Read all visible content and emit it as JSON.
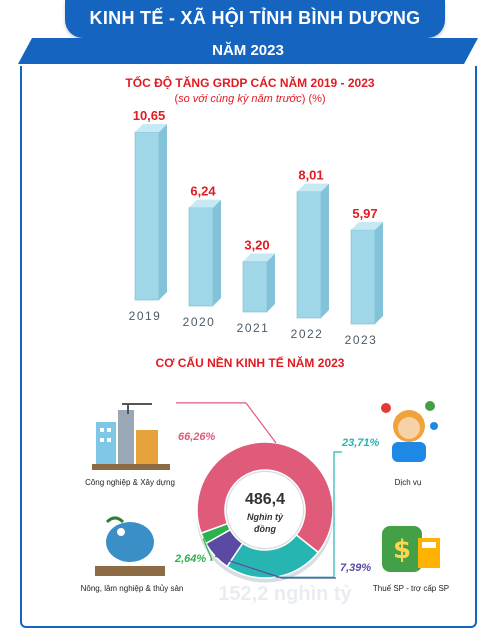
{
  "header": {
    "title": "KINH TẾ - XÃ HỘI TỈNH BÌNH DƯƠNG",
    "year": "NĂM 2023",
    "banner_color": "#1565c0",
    "accent_color": "#e01b22"
  },
  "chart_data": [
    {
      "type": "bar",
      "title": "TỐC ĐỘ TĂNG GRDP CÁC NĂM 2019 - 2023",
      "subtitle_italic": "so với cùng kỳ năm trước",
      "subtitle_unit": "(%)",
      "categories": [
        "2019",
        "2020",
        "2021",
        "2022",
        "2023"
      ],
      "values": [
        10.65,
        6.24,
        3.2,
        8.01,
        5.97
      ],
      "value_labels": [
        "10,65",
        "6,24",
        "3,20",
        "8,01",
        "5,97"
      ],
      "bar_color": "#9fd6e8",
      "label_color": "#e01b22"
    },
    {
      "type": "pie",
      "title": "CƠ CẤU NỀN KINH TẾ NĂM 2023",
      "center_value": "486,4",
      "center_unit": "Nghìn tỷ đồng",
      "slices": [
        {
          "label": "Công nghiệp & Xây dựng",
          "value": 66.26,
          "value_label": "66,26%",
          "color": "#e05a7a"
        },
        {
          "label": "Dịch vụ",
          "value": 23.71,
          "value_label": "23,71%",
          "color": "#26b5b0"
        },
        {
          "label": "Thuế SP - trợ cấp SP",
          "value": 7.39,
          "value_label": "7,39%",
          "color": "#5b4aa3"
        },
        {
          "label": "Nông, lâm nghiệp & thủy sản",
          "value": 2.64,
          "value_label": "2,64%",
          "color": "#2bb24c"
        }
      ],
      "faint_text": "152,2 nghìn tỷ"
    }
  ]
}
